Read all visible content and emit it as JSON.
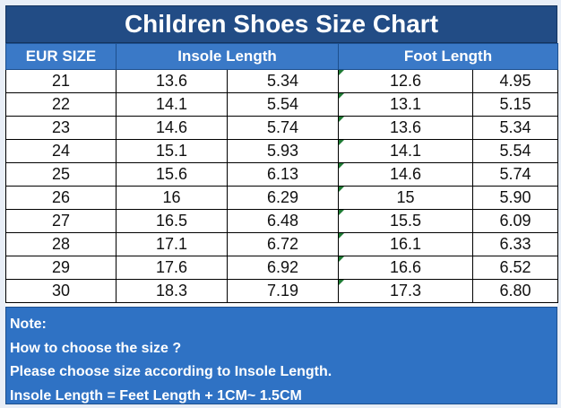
{
  "title": "Children Shoes Size Chart",
  "headers": {
    "eur_size": "EUR SIZE",
    "insole_length": "Insole Length",
    "foot_length": "Foot Length"
  },
  "rows": [
    {
      "eur": "21",
      "insole_cm": "13.6",
      "insole_in": "5.34",
      "foot_cm": "12.6",
      "foot_in": "4.95"
    },
    {
      "eur": "22",
      "insole_cm": "14.1",
      "insole_in": "5.54",
      "foot_cm": "13.1",
      "foot_in": "5.15"
    },
    {
      "eur": "23",
      "insole_cm": "14.6",
      "insole_in": "5.74",
      "foot_cm": "13.6",
      "foot_in": "5.34"
    },
    {
      "eur": "24",
      "insole_cm": "15.1",
      "insole_in": "5.93",
      "foot_cm": "14.1",
      "foot_in": "5.54"
    },
    {
      "eur": "25",
      "insole_cm": "15.6",
      "insole_in": "6.13",
      "foot_cm": "14.6",
      "foot_in": "5.74"
    },
    {
      "eur": "26",
      "insole_cm": "16",
      "insole_in": "6.29",
      "foot_cm": "15",
      "foot_in": "5.90"
    },
    {
      "eur": "27",
      "insole_cm": "16.5",
      "insole_in": "6.48",
      "foot_cm": "15.5",
      "foot_in": "6.09"
    },
    {
      "eur": "28",
      "insole_cm": "17.1",
      "insole_in": "6.72",
      "foot_cm": "16.1",
      "foot_in": "6.33"
    },
    {
      "eur": "29",
      "insole_cm": "17.6",
      "insole_in": "6.92",
      "foot_cm": "16.6",
      "foot_in": "6.52"
    },
    {
      "eur": "30",
      "insole_cm": "18.3",
      "insole_in": "7.19",
      "foot_cm": "17.3",
      "foot_in": "6.80"
    }
  ],
  "note": {
    "heading": "Note:",
    "line1": "How to choose the size ?",
    "line2": "Please choose size according to Insole Length.",
    "line3": "Insole Length = Feet Length + 1CM~ 1.5CM"
  },
  "colors": {
    "title_bg": "#224c85",
    "header_bg": "#3a79c7",
    "note_bg": "#2f72c4",
    "marker": "#1e7b34"
  }
}
